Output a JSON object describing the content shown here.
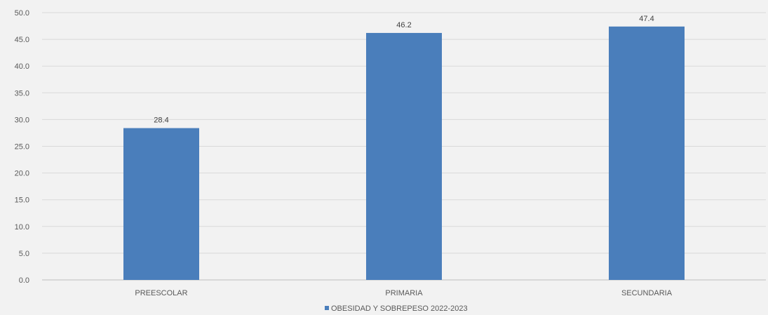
{
  "chart_data": {
    "type": "bar",
    "categories": [
      "PREESCOLAR",
      "PRIMARIA",
      "SECUNDARIA"
    ],
    "series": [
      {
        "name": "OBESIDAD Y SOBREPESO 2022-2023",
        "values": [
          28.4,
          46.2,
          47.4
        ],
        "color": "#4a7ebb"
      }
    ],
    "data_labels": [
      "28.4",
      "46.2",
      "47.4"
    ],
    "y_ticks": [
      "0.0",
      "5.0",
      "10.0",
      "15.0",
      "20.0",
      "25.0",
      "30.0",
      "35.0",
      "40.0",
      "45.0",
      "50.0"
    ],
    "ylim": [
      0,
      50
    ],
    "grid": true,
    "legend_position": "bottom"
  }
}
